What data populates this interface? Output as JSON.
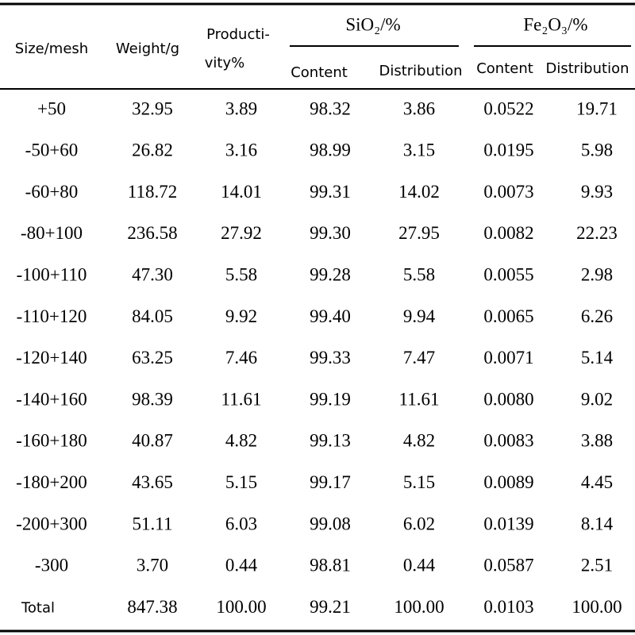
{
  "table": {
    "header": {
      "size": "Size/mesh",
      "weight": "Weight/g",
      "productivity": [
        "Producti-",
        "vity%"
      ],
      "sio2": "SiO₂/%",
      "fe2o3": "Fe₂O₃/%",
      "sio2_content": "Content",
      "sio2_distribution": "Distribution",
      "fe2o3_content": "Content",
      "fe2o3_distribution": "Distribution"
    },
    "rows": [
      [
        "+50",
        "32.95",
        "3.89",
        "98.32",
        "3.86",
        "0.0522",
        "19.71"
      ],
      [
        "-50+60",
        "26.82",
        "3.16",
        "98.99",
        "3.15",
        "0.0195",
        "5.98"
      ],
      [
        "-60+80",
        "118.72",
        "14.01",
        "99.31",
        "14.02",
        "0.0073",
        "9.93"
      ],
      [
        "-80+100",
        "236.58",
        "27.92",
        "99.30",
        "27.95",
        "0.0082",
        "22.23"
      ],
      [
        "-100+110",
        "47.30",
        "5.58",
        "99.28",
        "5.58",
        "0.0055",
        "2.98"
      ],
      [
        "-110+120",
        "84.05",
        "9.92",
        "99.40",
        "9.94",
        "0.0065",
        "6.26"
      ],
      [
        "-120+140",
        "63.25",
        "7.46",
        "99.33",
        "7.47",
        "0.0071",
        "5.14"
      ],
      [
        "-140+160",
        "98.39",
        "11.61",
        "99.19",
        "11.61",
        "0.0080",
        "9.02"
      ],
      [
        "-160+180",
        "40.87",
        "4.82",
        "99.13",
        "4.82",
        "0.0083",
        "3.88"
      ],
      [
        "-180+200",
        "43.65",
        "5.15",
        "99.17",
        "5.15",
        "0.0089",
        "4.45"
      ],
      [
        "-200+300",
        "51.11",
        "6.03",
        "99.08",
        "6.02",
        "0.0139",
        "8.14"
      ],
      [
        "-300",
        "3.70",
        "0.44",
        "98.81",
        "0.44",
        "0.0587",
        "2.51"
      ],
      [
        "Total",
        "847.38",
        "100.00",
        "99.21",
        "100.00",
        "0.0103",
        "100.00"
      ]
    ]
  }
}
